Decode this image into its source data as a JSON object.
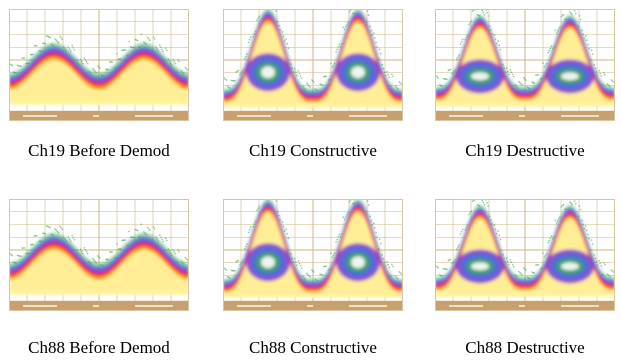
{
  "panels": [
    {
      "caption": "Ch19 Before Demod",
      "pattern": "before"
    },
    {
      "caption": "Ch19 Constructive",
      "pattern": "constructive"
    },
    {
      "caption": "Ch19 Destructive",
      "pattern": "destructive"
    },
    {
      "caption": "Ch88 Before Demod",
      "pattern": "before"
    },
    {
      "caption": "Ch88 Constructive",
      "pattern": "constructive"
    },
    {
      "caption": "Ch88 Destructive",
      "pattern": "destructive"
    }
  ],
  "colors": {
    "bezel": "#c8a070",
    "grid": "#c9b07a",
    "background": "#ffffff",
    "caption_text": "#000000"
  }
}
